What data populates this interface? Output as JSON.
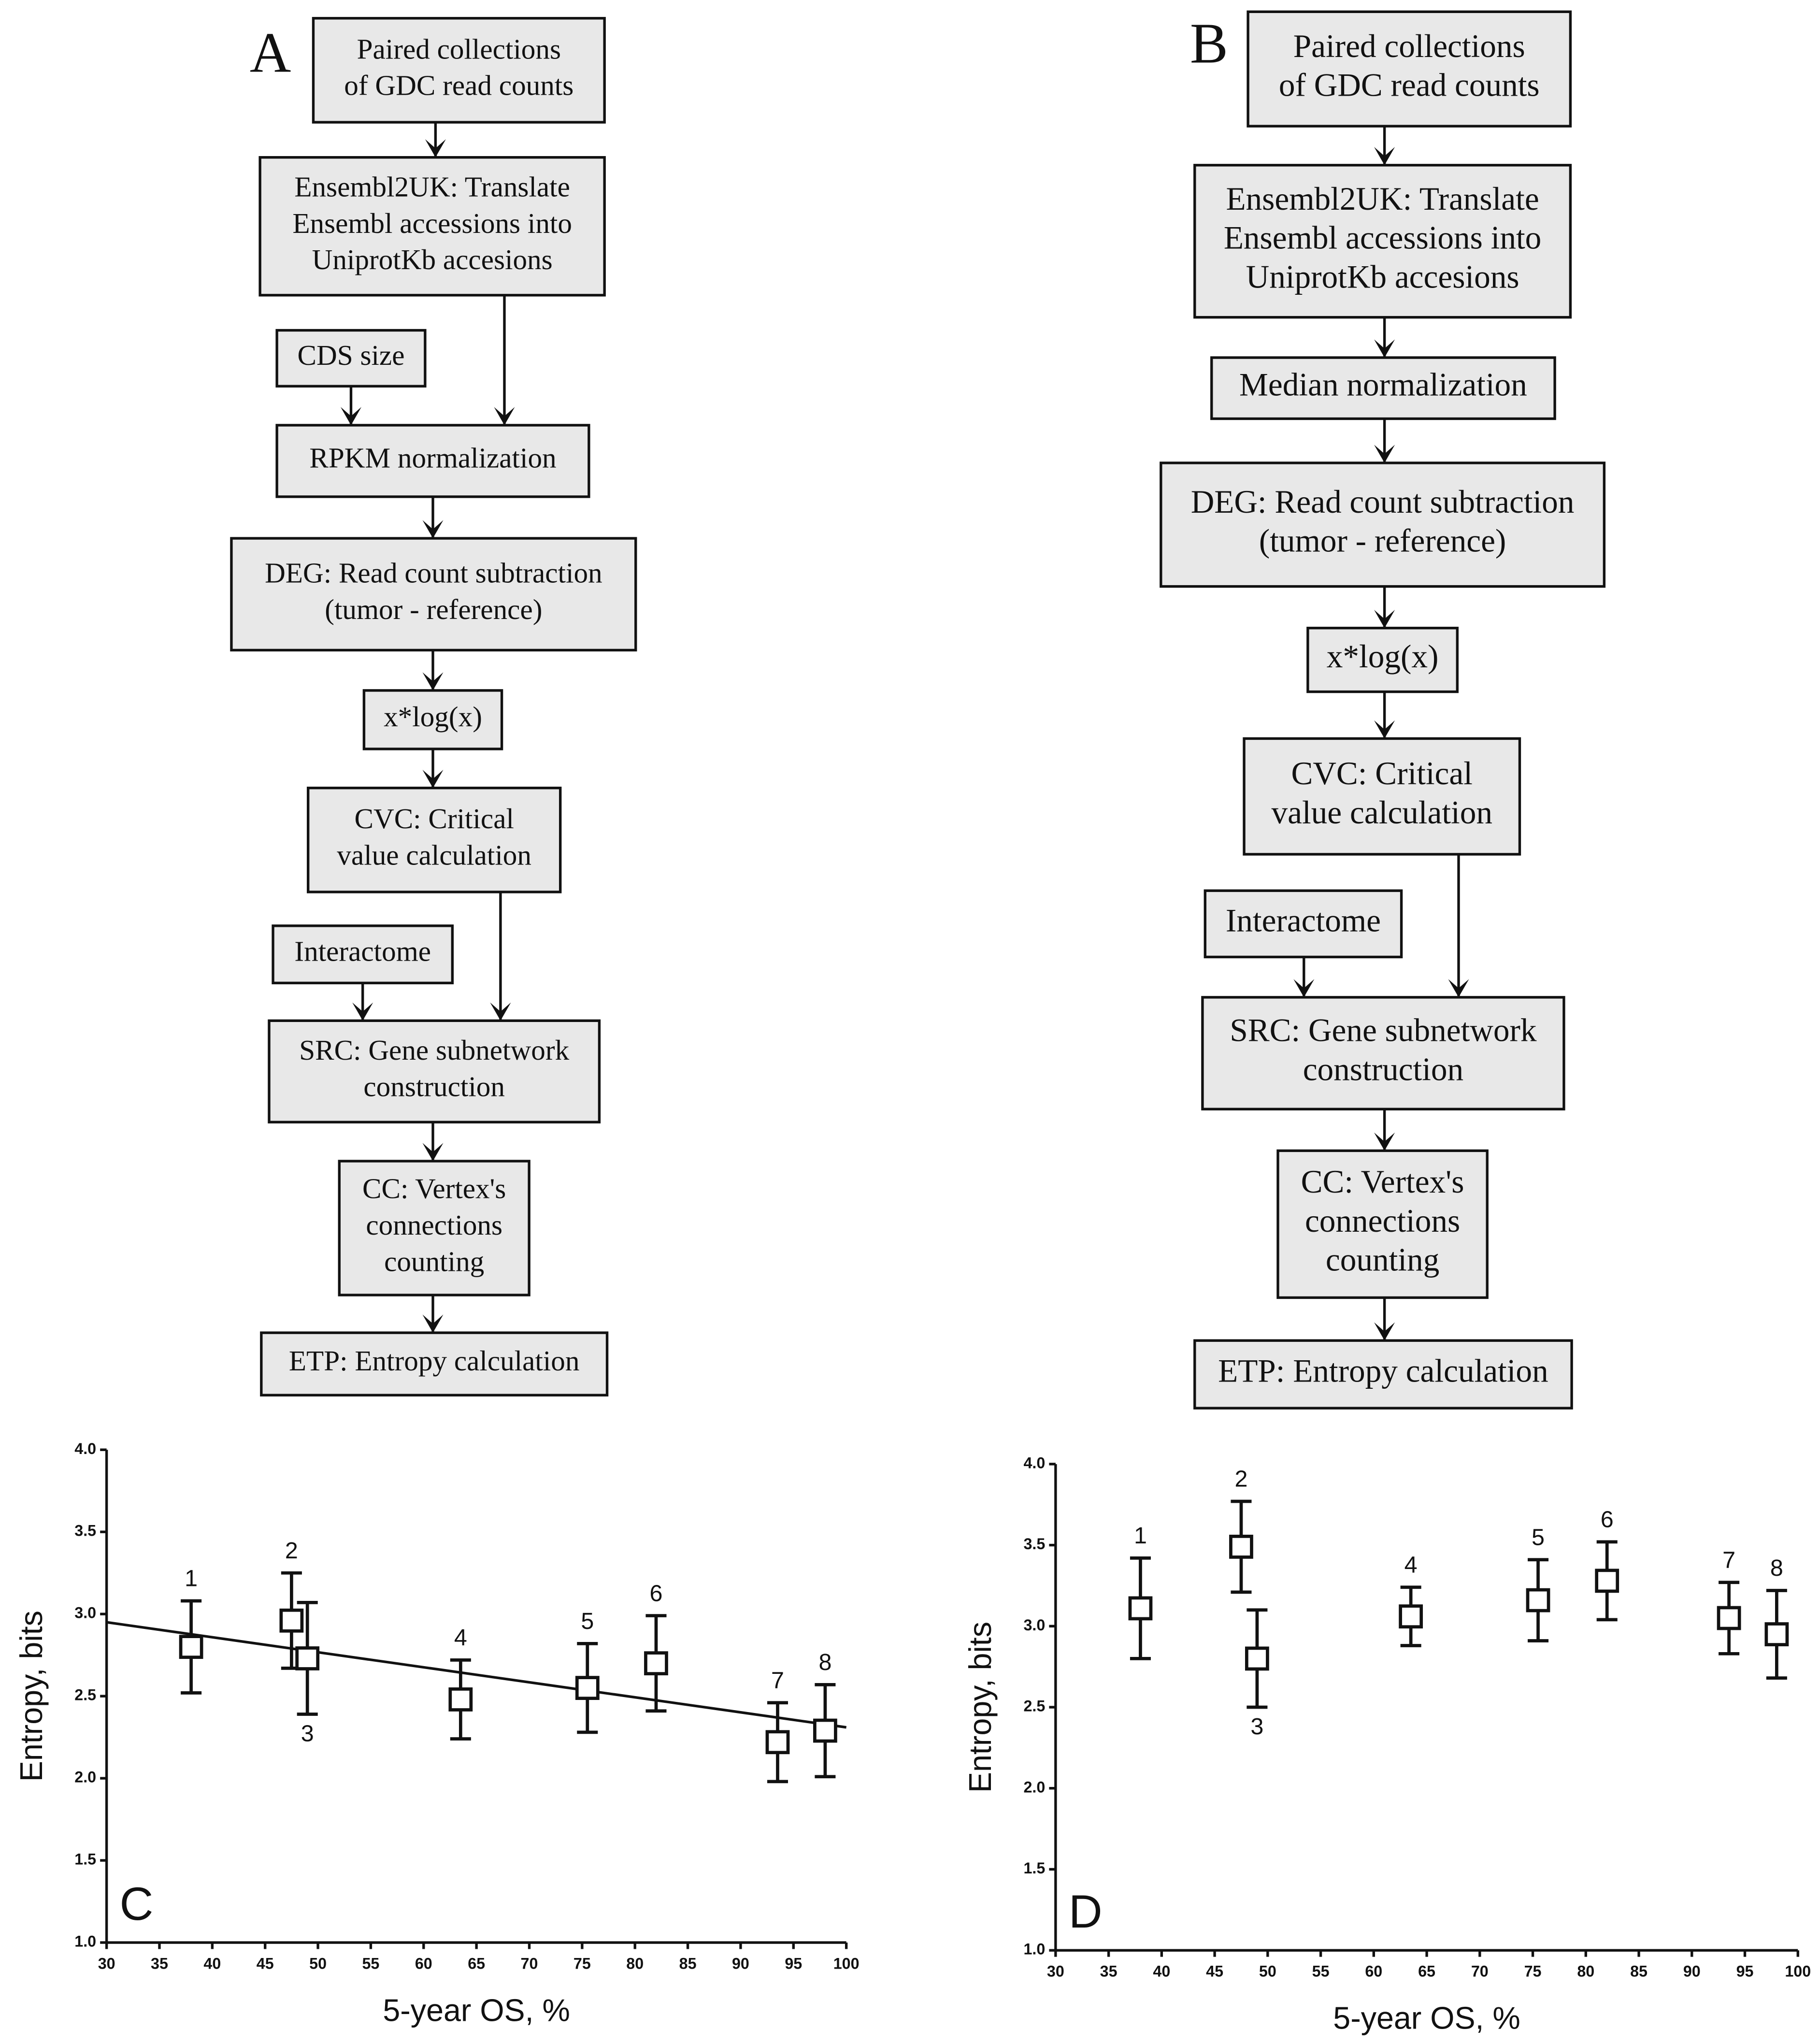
{
  "flowcharts": [
    {
      "label": "A",
      "boxes": [
        {
          "lines": [
            "Paired collections",
            "of GDC read counts"
          ]
        },
        {
          "lines": [
            "Ensembl2UK: Translate",
            "Ensembl accessions into",
            "UniprotKb accesions"
          ]
        },
        {
          "lines": [
            "CDS size"
          ]
        },
        {
          "lines": [
            "RPKM normalization"
          ]
        },
        {
          "lines": [
            "DEG: Read count subtraction",
            "(tumor - reference)"
          ]
        },
        {
          "lines": [
            "x*log(x)"
          ]
        },
        {
          "lines": [
            "CVC: Critical",
            "value calculation"
          ]
        },
        {
          "lines": [
            "Interactome"
          ]
        },
        {
          "lines": [
            "SRC: Gene subnetwork",
            "construction"
          ]
        },
        {
          "lines": [
            "CC: Vertex's",
            "connections",
            "counting"
          ]
        },
        {
          "lines": [
            "ETP: Entropy calculation"
          ]
        }
      ]
    },
    {
      "label": "B",
      "boxes": [
        {
          "lines": [
            "Paired collections",
            "of GDC read counts"
          ]
        },
        {
          "lines": [
            "Ensembl2UK: Translate",
            "Ensembl accessions into",
            "UniprotKb accesions"
          ]
        },
        {
          "lines": [
            "Median normalization"
          ]
        },
        {
          "lines": [
            "DEG: Read count subtraction",
            "(tumor - reference)"
          ]
        },
        {
          "lines": [
            "x*log(x)"
          ]
        },
        {
          "lines": [
            "CVC: Critical",
            "value calculation"
          ]
        },
        {
          "lines": [
            "Interactome"
          ]
        },
        {
          "lines": [
            "SRC: Gene subnetwork",
            "construction"
          ]
        },
        {
          "lines": [
            "CC: Vertex's",
            "connections",
            "counting"
          ]
        },
        {
          "lines": [
            "ETP: Entropy calculation"
          ]
        }
      ]
    }
  ],
  "chart_data": [
    {
      "type": "scatter",
      "panel": "C",
      "x_label": "5-year OS, %",
      "y_label": "Entropy, bits",
      "x": [
        38,
        47.5,
        49,
        63.5,
        75.5,
        82,
        93.5,
        98
      ],
      "values": [
        2.8,
        2.96,
        2.73,
        2.48,
        2.55,
        2.7,
        2.22,
        2.29
      ],
      "errors": [
        0.28,
        0.29,
        0.34,
        0.24,
        0.27,
        0.29,
        0.24,
        0.28
      ],
      "point_labels": [
        "1",
        "2",
        "3",
        "4",
        "5",
        "6",
        "7",
        "8"
      ],
      "trendline": {
        "x": [
          30,
          100
        ],
        "values": [
          2.95,
          2.31
        ]
      },
      "color": "#111111",
      "xlim": [
        30,
        100
      ],
      "xticks": [
        30,
        35,
        40,
        45,
        50,
        55,
        60,
        65,
        70,
        75,
        80,
        85,
        90,
        95,
        100
      ],
      "ylim": [
        1.0,
        4.0
      ],
      "yticks": [
        {
          "value": 1.0,
          "label": "1.0"
        },
        {
          "value": 1.5,
          "label": "1.5"
        },
        {
          "value": 2.0,
          "label": "2.0"
        },
        {
          "value": 2.5,
          "label": "2.5"
        },
        {
          "value": 3.0,
          "label": "3.0"
        },
        {
          "value": 3.5,
          "label": "3.5"
        },
        {
          "value": 4.0,
          "label": "4.0"
        }
      ]
    },
    {
      "type": "scatter",
      "panel": "D",
      "x_label": "5-year OS, %",
      "y_label": "Entropy, bits",
      "x": [
        38,
        47.5,
        49,
        63.5,
        75.5,
        82,
        93.5,
        98
      ],
      "values": [
        3.11,
        3.49,
        2.8,
        3.06,
        3.16,
        3.28,
        3.05,
        2.95
      ],
      "errors": [
        0.31,
        0.28,
        0.3,
        0.18,
        0.25,
        0.24,
        0.22,
        0.27
      ],
      "point_labels": [
        "1",
        "2",
        "3",
        "4",
        "5",
        "6",
        "7",
        "8"
      ],
      "color": "#111111",
      "xlim": [
        30,
        100
      ],
      "xticks": [
        30,
        35,
        40,
        45,
        50,
        55,
        60,
        65,
        70,
        75,
        80,
        85,
        90,
        95,
        100
      ],
      "ylim": [
        1.0,
        4.0
      ],
      "yticks": [
        {
          "value": 1.0,
          "label": "1.0"
        },
        {
          "value": 1.5,
          "label": "1.5"
        },
        {
          "value": 2.0,
          "label": "2.0"
        },
        {
          "value": 2.5,
          "label": "2.5"
        },
        {
          "value": 3.0,
          "label": "3.0"
        },
        {
          "value": 3.5,
          "label": "3.5"
        },
        {
          "value": 4.0,
          "label": "4.0"
        }
      ]
    }
  ]
}
